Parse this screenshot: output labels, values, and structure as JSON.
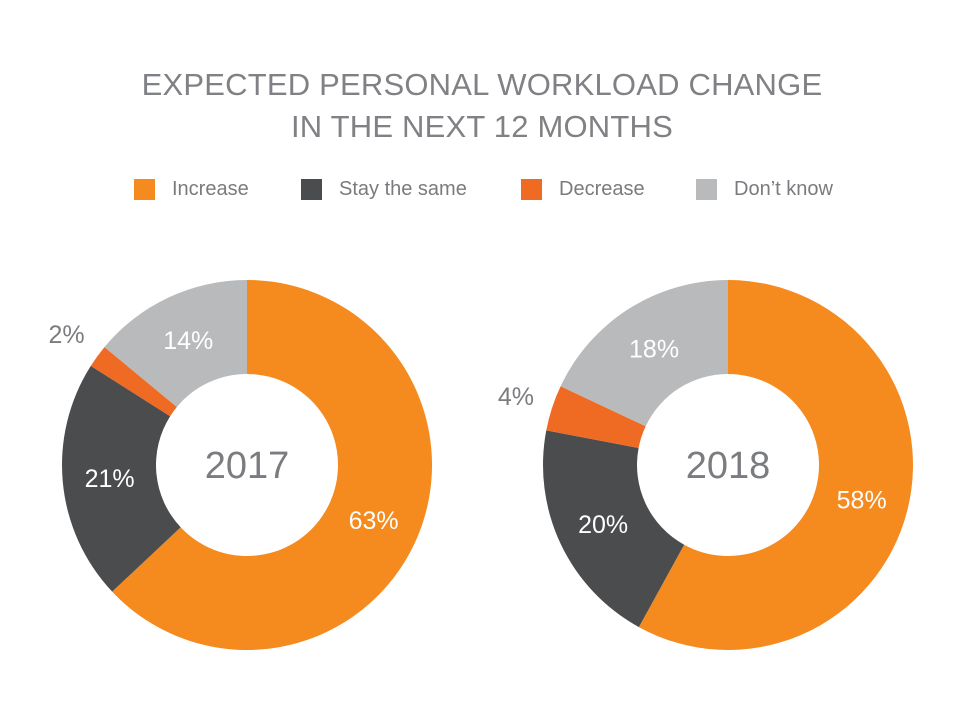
{
  "title_line1": "EXPECTED PERSONAL WORKLOAD CHANGE",
  "title_line2": "IN THE NEXT 12 MONTHS",
  "chart_data": {
    "type": "pie",
    "legend": {
      "placement": "top",
      "entries": [
        "Increase",
        "Stay the same",
        "Decrease",
        "Don’t know"
      ]
    },
    "colors": {
      "Increase": "#f58a1f",
      "Stay the same": "#4b4c4e",
      "Decrease": "#ef6a22",
      "Don’t know": "#b9babc"
    },
    "charts": [
      {
        "center_label": "2017",
        "slices": [
          {
            "name": "Increase",
            "value": 63,
            "label": "63%"
          },
          {
            "name": "Stay the same",
            "value": 21,
            "label": "21%"
          },
          {
            "name": "Decrease",
            "value": 2,
            "label": "2%"
          },
          {
            "name": "Don’t know",
            "value": 14,
            "label": "14%"
          }
        ]
      },
      {
        "center_label": "2018",
        "slices": [
          {
            "name": "Increase",
            "value": 58,
            "label": "58%"
          },
          {
            "name": "Stay the same",
            "value": 20,
            "label": "20%"
          },
          {
            "name": "Decrease",
            "value": 4,
            "label": "4%"
          },
          {
            "name": "Don’t know",
            "value": 18,
            "label": "18%"
          }
        ]
      }
    ]
  }
}
